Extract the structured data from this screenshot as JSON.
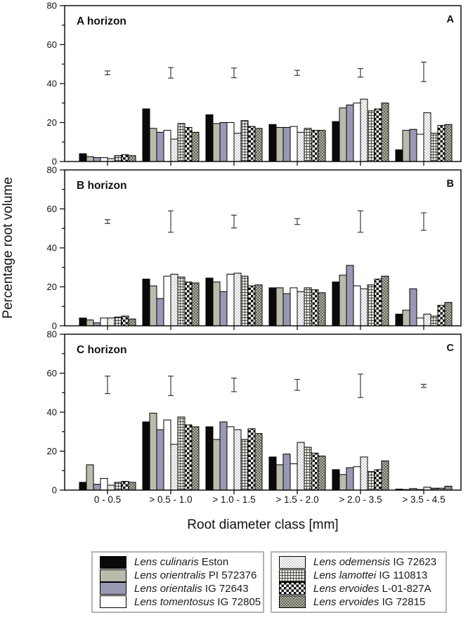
{
  "figure": {
    "y_axis_label": "Percentage root volume",
    "x_axis_label": "Root diameter class [mm]"
  },
  "series": [
    {
      "key": "lens-culinaris-eston",
      "italic": "Lens culinaris",
      "rest": " Eston",
      "color": "#0a0a0a"
    },
    {
      "key": "lens-orientralis-pi-572376",
      "italic": "Lens orientralis",
      "rest": " PI 572376",
      "color": "#b9bcab"
    },
    {
      "key": "lens-orientalis-ig-72643",
      "italic": "Lens orientalis",
      "rest": " IG 72643",
      "color": "#9899b4"
    },
    {
      "key": "lens-tomentosus-ig-72805",
      "italic": "Lens tomentosus",
      "rest": " IG 72805",
      "color": "#ffffff"
    },
    {
      "key": "lens-odemensis-ig-72623",
      "italic": "Lens odemensis",
      "rest": " IG 72623",
      "pattern": "dots-light"
    },
    {
      "key": "lens-lamottei-ig-110813",
      "italic": "Lens lamottei",
      "rest": " IG 110813",
      "pattern": "grid-dark"
    },
    {
      "key": "lens-ervoides-l-01-827a",
      "italic": "Lens ervoides",
      "rest": " L-01-827A",
      "pattern": "checker"
    },
    {
      "key": "lens-ervoides-ig-72815",
      "italic": "Lens ervoides",
      "rest": " IG 72815",
      "pattern": "dots-dark"
    }
  ],
  "chart_data": {
    "type": "bar",
    "categories": [
      "0 - 0.5",
      "> 0.5 - 1.0",
      "> 1.0 - 1.5",
      "> 1.5 - 2.0",
      "> 2.0 - 3.5",
      "> 3.5 - 4.5"
    ],
    "xlabel": "Root diameter class [mm]",
    "ylabel": "Percentage root volume",
    "grid": false,
    "legend_position": "bottom",
    "panels": [
      {
        "title": "A horizon",
        "corner_label": "A",
        "ylim": [
          0,
          80
        ],
        "yticks": [
          0,
          20,
          40,
          60,
          80
        ],
        "minor_tick_step": 10,
        "series": [
          {
            "name": "Lens culinaris Eston",
            "values": [
              4,
              27,
              24,
              19,
              20.5,
              6
            ]
          },
          {
            "name": "Lens orientralis PI 572376",
            "values": [
              2.5,
              17,
              19.5,
              17.5,
              27.5,
              16
            ]
          },
          {
            "name": "Lens orientalis IG 72643",
            "values": [
              2,
              15,
              20,
              17.5,
              29,
              16.5
            ]
          },
          {
            "name": "Lens tomentosus IG 72805",
            "values": [
              2,
              16,
              20,
              18,
              30,
              14
            ]
          },
          {
            "name": "Lens odemensis IG 72623",
            "values": [
              1.5,
              11.5,
              14.5,
              15,
              32,
              25
            ]
          },
          {
            "name": "Lens lamottei IG 110813",
            "values": [
              3,
              19.5,
              21,
              17,
              26,
              14.5
            ]
          },
          {
            "name": "Lens ervoides L-01-827A",
            "values": [
              3.5,
              17.5,
              18,
              16,
              27,
              18.5
            ]
          },
          {
            "name": "Lens ervoides IG 72815",
            "values": [
              3,
              15,
              17,
              16,
              30,
              19
            ]
          }
        ],
        "error_bars": [
          {
            "center": 45.5,
            "half": 1
          },
          {
            "center": 45.5,
            "half": 2.7
          },
          {
            "center": 45.5,
            "half": 2.5
          },
          {
            "center": 45.5,
            "half": 1.3
          },
          {
            "center": 45.5,
            "half": 2.2
          },
          {
            "center": 46,
            "half": 5
          }
        ]
      },
      {
        "title": "B horizon",
        "corner_label": "B",
        "ylim": [
          0,
          80
        ],
        "yticks": [
          0,
          20,
          40,
          60,
          80
        ],
        "minor_tick_step": 10,
        "series": [
          {
            "name": "Lens culinaris Eston",
            "values": [
              4,
              24,
              24.5,
              19.5,
              22.5,
              6
            ]
          },
          {
            "name": "Lens orientralis PI 572376",
            "values": [
              3,
              20.5,
              22.5,
              19.5,
              26,
              8
            ]
          },
          {
            "name": "Lens orientalis IG 72643",
            "values": [
              1.5,
              14,
              17.5,
              16.5,
              31,
              19
            ]
          },
          {
            "name": "Lens tomentosus IG 72805",
            "values": [
              4,
              25.5,
              26.5,
              19.5,
              20.5,
              4
            ]
          },
          {
            "name": "Lens odemensis IG 72623",
            "values": [
              4,
              26.5,
              27,
              17.5,
              19,
              6
            ]
          },
          {
            "name": "Lens lamottei IG 110813",
            "values": [
              4.5,
              25,
              25.5,
              19.5,
              21,
              5
            ]
          },
          {
            "name": "Lens ervoides L-01-827A",
            "values": [
              5,
              22.5,
              20.5,
              18.5,
              24,
              10.5
            ]
          },
          {
            "name": "Lens ervoides IG 72815",
            "values": [
              3.5,
              22,
              21,
              17,
              25.5,
              12
            ]
          }
        ],
        "error_bars": [
          {
            "center": 53.5,
            "half": 1
          },
          {
            "center": 53.5,
            "half": 5.5
          },
          {
            "center": 53.5,
            "half": 3.3
          },
          {
            "center": 53.5,
            "half": 1.5
          },
          {
            "center": 53.5,
            "half": 5.5
          },
          {
            "center": 53.5,
            "half": 4.5
          }
        ]
      },
      {
        "title": "C horizon",
        "corner_label": "C",
        "ylim": [
          0,
          80
        ],
        "yticks": [
          0,
          20,
          40,
          60,
          80
        ],
        "minor_tick_step": 10,
        "series": [
          {
            "name": "Lens culinaris Eston",
            "values": [
              4,
              35,
              32.5,
              17,
              10.5,
              0.5
            ]
          },
          {
            "name": "Lens orientralis PI 572376",
            "values": [
              13,
              39.5,
              26,
              13,
              8,
              0.3
            ]
          },
          {
            "name": "Lens orientalis IG 72643",
            "values": [
              3,
              31,
              35,
              18.5,
              11.5,
              0.8
            ]
          },
          {
            "name": "Lens tomentosus IG 72805",
            "values": [
              6,
              36,
              32.5,
              13.5,
              12,
              0.3
            ]
          },
          {
            "name": "Lens odemensis IG 72623",
            "values": [
              2.5,
              23.5,
              31,
              24.5,
              17,
              1.5
            ]
          },
          {
            "name": "Lens lamottei IG 110813",
            "values": [
              4,
              37.5,
              26,
              22,
              9.5,
              1
            ]
          },
          {
            "name": "Lens ervoides L-01-827A",
            "values": [
              4.5,
              33.5,
              31.5,
              19,
              10.5,
              1
            ]
          },
          {
            "name": "Lens ervoides IG 72815",
            "values": [
              4,
              32.5,
              29,
              17.5,
              15,
              2
            ]
          }
        ],
        "error_bars": [
          {
            "center": 54,
            "half": 4.5
          },
          {
            "center": 53.5,
            "half": 5
          },
          {
            "center": 54,
            "half": 3.5
          },
          {
            "center": 54,
            "half": 2.8
          },
          {
            "center": 53.5,
            "half": 6
          },
          {
            "center": 53.5,
            "half": 0.8
          }
        ]
      }
    ]
  },
  "legend": {
    "boxes": [
      {
        "items": [
          0,
          1,
          2,
          3
        ]
      },
      {
        "items": [
          4,
          5,
          6,
          7
        ]
      }
    ]
  }
}
